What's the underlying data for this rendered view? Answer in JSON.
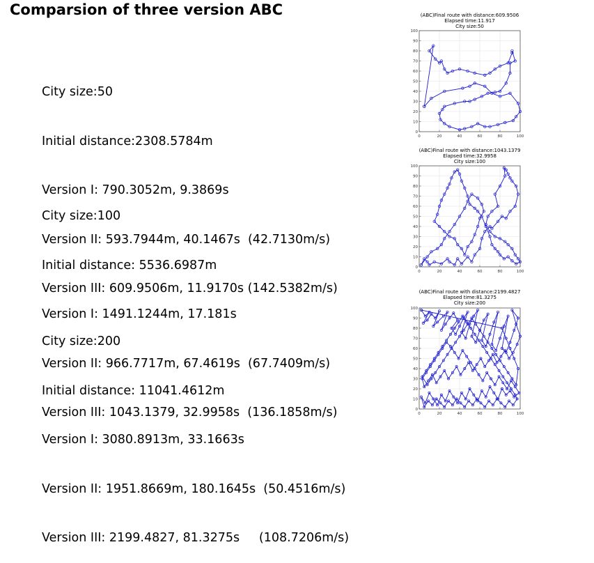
{
  "page": {
    "title": "Comparsion of three version ABC"
  },
  "sections": [
    {
      "lines": [
        "City size:50",
        "Initial distance:2308.5784m",
        "Version I: 790.3052m, 9.3869s",
        "Version II: 593.7944m, 40.1467s  (42.7130m/s)",
        "Version III: 609.9506m, 11.9170s (142.5382m/s)"
      ]
    },
    {
      "lines": [
        "City size:100",
        "Initial distance: 5536.6987m",
        "Version I: 1491.1244m, 17.181s",
        "Version II: 966.7717m, 67.4619s  (67.7409m/s)",
        "Version III: 1043.1379, 32.9958s  (136.1858m/s)"
      ]
    },
    {
      "lines": [
        "City size:200",
        "Initial distance: 11041.4612m",
        "Version I: 3080.8913m, 33.1663s",
        "Version II: 1951.8669m, 180.1645s  (50.4516m/s)",
        "Version III: 2199.4827, 81.3275s     (108.7206m/s)"
      ]
    }
  ],
  "chart_data": [
    {
      "type": "line",
      "title": [
        "(ABC)Final route with distance:609.9506",
        "Elapsed time:11.917",
        "City size:50"
      ],
      "xlim": [
        0,
        100
      ],
      "ylim": [
        0,
        100
      ],
      "xticks": [
        0,
        20,
        40,
        60,
        80,
        100
      ],
      "yticks": [
        0,
        10,
        20,
        30,
        40,
        50,
        60,
        70,
        80,
        90,
        100
      ],
      "grid": true,
      "line_color": "#1a1ad0",
      "x": [
        5,
        12,
        25,
        43,
        50,
        55,
        65,
        72,
        80,
        90,
        98,
        100,
        96,
        93,
        85,
        78,
        70,
        65,
        58,
        52,
        45,
        40,
        30,
        25,
        21,
        20,
        23,
        25,
        35,
        45,
        50,
        55,
        62,
        68,
        75,
        80,
        86,
        90,
        90,
        95,
        92,
        92,
        88,
        80,
        75,
        70,
        65,
        55,
        48,
        40,
        33,
        28,
        25,
        22,
        20,
        16,
        10,
        14,
        5
      ],
      "y": [
        25,
        33,
        40,
        43,
        45,
        48,
        45,
        38,
        35,
        38,
        28,
        20,
        15,
        11,
        9,
        7,
        5,
        5,
        8,
        5,
        3,
        2,
        5,
        8,
        12,
        18,
        22,
        25,
        28,
        30,
        30,
        32,
        35,
        38,
        39,
        40,
        48,
        58,
        68,
        70,
        80,
        78,
        68,
        65,
        62,
        58,
        56,
        58,
        60,
        62,
        60,
        58,
        62,
        70,
        68,
        72,
        80,
        85,
        25
      ]
    },
    {
      "type": "line",
      "title": [
        "(ABC)Final route with distance:1043.1379",
        "Elapsed time:32.9958",
        "City size:100"
      ],
      "xlim": [
        0,
        100
      ],
      "ylim": [
        0,
        100
      ],
      "xticks": [
        0,
        20,
        40,
        60,
        80,
        100
      ],
      "yticks": [
        0,
        10,
        20,
        30,
        40,
        50,
        60,
        70,
        80,
        90,
        100
      ],
      "grid": true,
      "line_color": "#1a1ad0",
      "x": [
        2,
        5,
        8,
        10,
        15,
        22,
        28,
        30,
        35,
        38,
        42,
        48,
        52,
        55,
        60,
        62,
        65,
        70,
        72,
        78,
        82,
        86,
        90,
        95,
        98,
        96,
        92,
        90,
        88,
        86,
        84,
        85,
        80,
        75,
        78,
        72,
        68,
        66,
        70,
        75,
        80,
        85,
        88,
        92,
        95,
        98,
        100,
        96,
        92,
        88,
        84,
        80,
        78,
        75,
        72,
        70,
        66,
        62,
        58,
        55,
        50,
        48,
        45,
        42,
        40,
        38,
        35,
        32,
        30,
        28,
        25,
        22,
        20,
        18,
        15,
        20,
        25,
        30,
        35,
        38,
        42,
        45,
        48,
        52,
        55,
        58,
        60,
        64,
        62,
        58,
        52,
        48,
        45,
        40,
        35,
        30,
        25,
        22,
        18,
        12,
        8,
        2
      ],
      "y": [
        2,
        8,
        5,
        2,
        5,
        3,
        8,
        5,
        2,
        8,
        3,
        10,
        5,
        12,
        18,
        28,
        35,
        40,
        38,
        45,
        50,
        48,
        55,
        60,
        72,
        80,
        85,
        88,
        92,
        96,
        98,
        90,
        80,
        72,
        60,
        55,
        50,
        42,
        35,
        30,
        28,
        25,
        22,
        18,
        12,
        8,
        5,
        3,
        6,
        10,
        8,
        12,
        15,
        18,
        22,
        30,
        40,
        50,
        55,
        58,
        62,
        70,
        78,
        85,
        92,
        96,
        94,
        88,
        82,
        78,
        72,
        66,
        60,
        52,
        45,
        40,
        35,
        30,
        28,
        22,
        18,
        12,
        20,
        25,
        32,
        40,
        48,
        55,
        62,
        68,
        72,
        65,
        58,
        50,
        42,
        35,
        28,
        22,
        18,
        15,
        10,
        2
      ]
    },
    {
      "type": "line",
      "title": [
        "(ABC)Final route with distance:2199.4827",
        "Elapsed time:81.3275",
        "City size:200"
      ],
      "xlim": [
        0,
        100
      ],
      "ylim": [
        0,
        100
      ],
      "xticks": [
        0,
        20,
        40,
        60,
        80,
        100
      ],
      "yticks": [
        0,
        10,
        20,
        30,
        40,
        50,
        60,
        70,
        80,
        90,
        100
      ],
      "grid": true,
      "line_color": "#1a1ad0",
      "x": [
        2,
        6,
        10,
        4,
        8,
        12,
        16,
        20,
        14,
        18,
        24,
        28,
        22,
        26,
        30,
        34,
        38,
        32,
        36,
        40,
        44,
        48,
        42,
        46,
        50,
        54,
        58,
        52,
        56,
        60,
        64,
        68,
        62,
        66,
        70,
        74,
        78,
        72,
        76,
        80,
        84,
        88,
        82,
        86,
        90,
        94,
        98,
        92,
        96,
        100,
        97,
        93,
        89,
        85,
        81,
        77,
        73,
        69,
        65,
        61,
        57,
        53,
        49,
        45,
        41,
        37,
        33,
        29,
        25,
        21,
        17,
        13,
        9,
        5,
        3,
        7,
        11,
        15,
        19,
        23,
        27,
        31,
        35,
        39,
        43,
        47,
        51,
        55,
        59,
        63,
        67,
        71,
        75,
        79,
        83,
        87,
        91,
        95,
        99,
        94,
        90,
        86,
        82,
        78,
        74,
        70,
        66,
        62,
        58,
        54,
        50,
        46,
        42,
        38,
        34,
        30,
        26,
        22,
        18,
        14,
        10,
        6,
        2,
        5,
        9,
        13,
        17,
        21,
        25,
        29,
        33,
        37,
        41,
        45,
        49,
        53,
        57,
        61,
        65,
        69,
        73,
        77,
        81,
        85,
        89,
        93,
        97,
        95,
        91,
        87,
        83,
        79,
        75,
        71,
        67,
        63,
        59,
        55,
        51,
        47,
        43,
        39,
        35,
        31,
        27,
        23,
        19,
        15,
        11,
        7,
        3,
        8,
        12,
        16,
        20,
        24,
        28,
        32,
        36,
        40,
        44,
        48,
        52,
        56,
        60,
        64,
        68,
        72,
        76,
        80,
        84,
        88,
        92,
        96,
        98,
        94,
        90,
        86,
        82,
        2
      ],
      "y": [
        98,
        92,
        96,
        85,
        88,
        94,
        90,
        97,
        82,
        86,
        92,
        96,
        78,
        84,
        90,
        95,
        88,
        80,
        74,
        82,
        90,
        96,
        76,
        70,
        84,
        92,
        98,
        72,
        66,
        78,
        88,
        94,
        68,
        62,
        74,
        86,
        96,
        64,
        58,
        70,
        82,
        92,
        60,
        56,
        66,
        78,
        90,
        98,
        84,
        72,
        64,
        56,
        50,
        58,
        52,
        46,
        54,
        48,
        42,
        50,
        44,
        38,
        46,
        40,
        34,
        42,
        36,
        30,
        38,
        32,
        26,
        34,
        28,
        22,
        30,
        36,
        42,
        48,
        54,
        60,
        66,
        62,
        56,
        50,
        58,
        52,
        46,
        40,
        34,
        28,
        36,
        30,
        24,
        32,
        26,
        20,
        28,
        22,
        16,
        12,
        18,
        14,
        20,
        10,
        16,
        22,
        12,
        18,
        8,
        14,
        20,
        10,
        16,
        6,
        12,
        18,
        8,
        14,
        4,
        10,
        16,
        6,
        12,
        2,
        8,
        4,
        10,
        6,
        2,
        8,
        4,
        10,
        6,
        2,
        8,
        4,
        10,
        6,
        2,
        8,
        4,
        10,
        6,
        2,
        8,
        4,
        10,
        14,
        20,
        26,
        32,
        38,
        44,
        50,
        56,
        62,
        68,
        74,
        80,
        86,
        92,
        86,
        80,
        74,
        68,
        62,
        56,
        50,
        44,
        38,
        32,
        24,
        30,
        36,
        42,
        48,
        54,
        60,
        66,
        72,
        78,
        84,
        90,
        84,
        78,
        72,
        66,
        60,
        54,
        48,
        42,
        36,
        30,
        24,
        40,
        50,
        60,
        70,
        80,
        98
      ]
    }
  ]
}
